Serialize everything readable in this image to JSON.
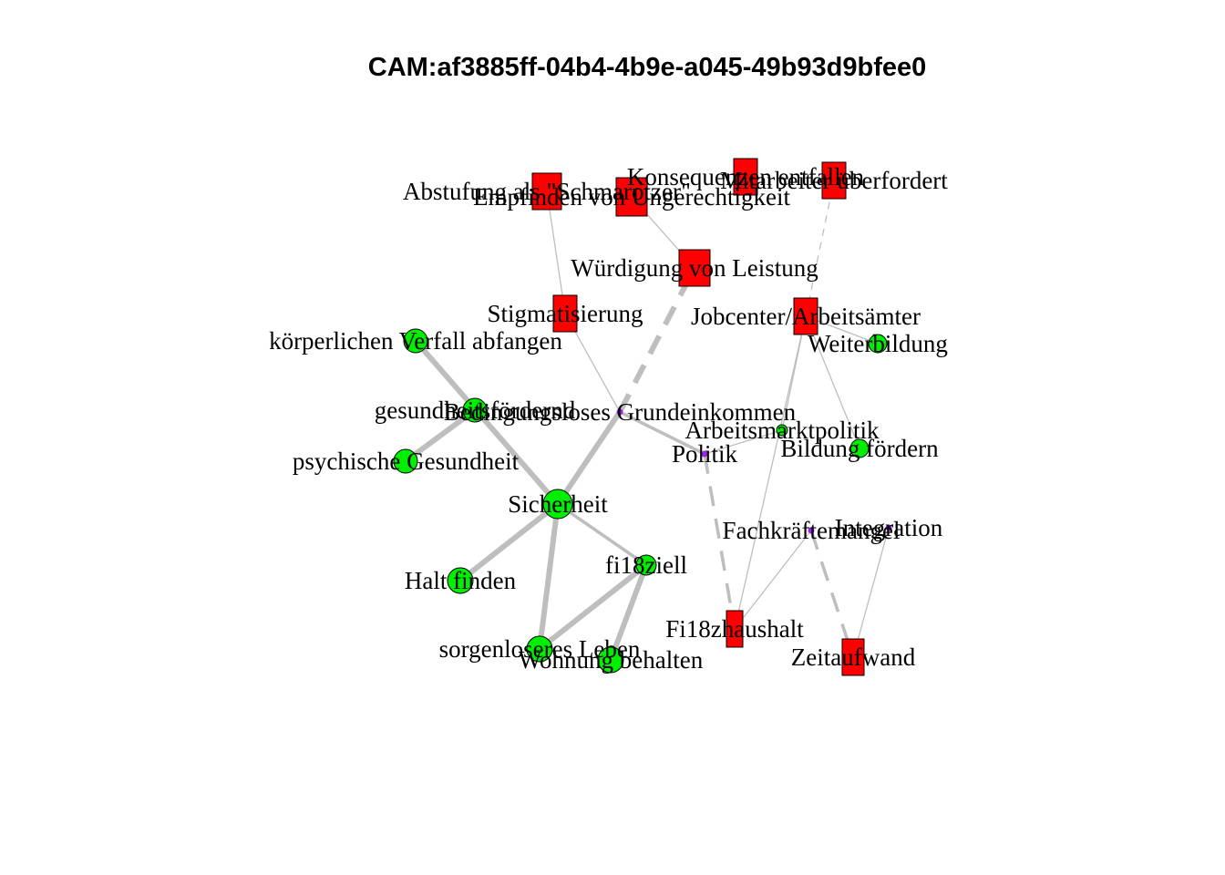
{
  "title": "CAM:af3885ff-04b4-4b9e-a045-49b93d9bfee0",
  "colors": {
    "positive": "#00ee00",
    "negative": "#ff0000",
    "neutral": "#a020f0",
    "edge": "#bebebe",
    "outline": "#000000"
  },
  "nodes": [
    {
      "id": "bge",
      "label": "Bedingungsloses Grundeinkommen",
      "valence": "neutral"
    },
    {
      "id": "sich",
      "label": "Sicherheit",
      "valence": "positive"
    },
    {
      "id": "abst",
      "label": "Abstufung als \"Schmarotzer\"",
      "valence": "negative"
    },
    {
      "id": "empf",
      "label": "Empfinden von Ungerechtigkeit",
      "valence": "negative"
    },
    {
      "id": "kons",
      "label": "Konsequenzen entfallen",
      "valence": "negative"
    },
    {
      "id": "mitarb",
      "label": "Mitarbeiter überfordert",
      "valence": "negative"
    },
    {
      "id": "wuerd",
      "label": "Würdigung von Leistung",
      "valence": "negative"
    },
    {
      "id": "stig",
      "label": "Stigmatisierung",
      "valence": "negative"
    },
    {
      "id": "job",
      "label": "Jobcenter/Arbeitsämter",
      "valence": "negative"
    },
    {
      "id": "weit",
      "label": "Weiterbildung",
      "valence": "positive"
    },
    {
      "id": "koerp",
      "label": "körperlichen Verfall abfangen",
      "valence": "positive"
    },
    {
      "id": "gesund",
      "label": "gesundheitsfördernd",
      "valence": "positive"
    },
    {
      "id": "psych",
      "label": "psychische Gesundheit",
      "valence": "positive"
    },
    {
      "id": "amp",
      "label": "Arbeitsmarktpolitik",
      "valence": "positive"
    },
    {
      "id": "pol",
      "label": "Politik",
      "valence": "neutral"
    },
    {
      "id": "bild",
      "label": "Bildung fördern",
      "valence": "positive"
    },
    {
      "id": "fkm",
      "label": "Fachkräftemangel",
      "valence": "neutral"
    },
    {
      "id": "integ",
      "label": "Integration",
      "valence": "neutral"
    },
    {
      "id": "halt",
      "label": "Halt finden",
      "valence": "positive"
    },
    {
      "id": "fiziel",
      "label": "fi18ziell",
      "valence": "positive"
    },
    {
      "id": "fihh",
      "label": "Fi18zhaushalt",
      "valence": "negative"
    },
    {
      "id": "zeit",
      "label": "Zeitaufwand",
      "valence": "negative"
    },
    {
      "id": "sorg",
      "label": "sorgenloseres Leben",
      "valence": "positive"
    },
    {
      "id": "wohn",
      "label": "Wohnung behalten",
      "valence": "positive"
    }
  ],
  "edges": [
    {
      "from": "bge",
      "to": "sich",
      "weight": 3,
      "dashed": false
    },
    {
      "from": "bge",
      "to": "wuerd",
      "weight": 3,
      "dashed": true
    },
    {
      "from": "bge",
      "to": "stig",
      "weight": 1,
      "dashed": false
    },
    {
      "from": "bge",
      "to": "pol",
      "weight": 2,
      "dashed": false
    },
    {
      "from": "stig",
      "to": "abst",
      "weight": 1,
      "dashed": false
    },
    {
      "from": "wuerd",
      "to": "empf",
      "weight": 1,
      "dashed": false
    },
    {
      "from": "sich",
      "to": "koerp",
      "weight": 3,
      "dashed": false
    },
    {
      "from": "sich",
      "to": "gesund",
      "weight": 2,
      "dashed": false
    },
    {
      "from": "gesund",
      "to": "psych",
      "weight": 3,
      "dashed": false
    },
    {
      "from": "sich",
      "to": "halt",
      "weight": 3,
      "dashed": false
    },
    {
      "from": "sich",
      "to": "fiziel",
      "weight": 2,
      "dashed": false
    },
    {
      "from": "sich",
      "to": "sorg",
      "weight": 3,
      "dashed": false
    },
    {
      "from": "fiziel",
      "to": "sorg",
      "weight": 3,
      "dashed": false
    },
    {
      "from": "fiziel",
      "to": "wohn",
      "weight": 3,
      "dashed": false
    },
    {
      "from": "pol",
      "to": "amp",
      "weight": 1,
      "dashed": false
    },
    {
      "from": "pol",
      "to": "fihh",
      "weight": 2,
      "dashed": true
    },
    {
      "from": "amp",
      "to": "job",
      "weight": 1,
      "dashed": false
    },
    {
      "from": "job",
      "to": "mitarb",
      "weight": 1,
      "dashed": true
    },
    {
      "from": "job",
      "to": "weit",
      "weight": 1,
      "dashed": false
    },
    {
      "from": "job",
      "to": "bild",
      "weight": 1,
      "dashed": false
    },
    {
      "from": "job",
      "to": "fihh",
      "weight": 1,
      "dashed": false
    },
    {
      "from": "fkm",
      "to": "fihh",
      "weight": 1,
      "dashed": false
    },
    {
      "from": "fkm",
      "to": "zeit",
      "weight": 2,
      "dashed": true
    },
    {
      "from": "integ",
      "to": "zeit",
      "weight": 1,
      "dashed": false
    }
  ]
}
